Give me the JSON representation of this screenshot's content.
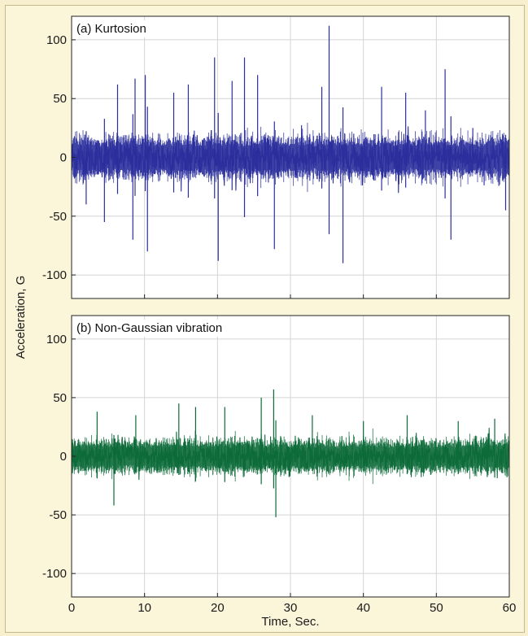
{
  "chart_data": [
    {
      "type": "line",
      "title": "(a) Kurtosion",
      "xlim": [
        0,
        60
      ],
      "ylim": [
        -120,
        120
      ],
      "xticks": [
        0,
        10,
        20,
        30,
        40,
        50,
        60
      ],
      "yticks": [
        -100,
        -50,
        0,
        50,
        100
      ],
      "grid": true,
      "color": "#2b2f9c",
      "series": [
        {
          "description_points": {
            "x": [
              2.0,
              4.5,
              6.3,
              8.4,
              8.7,
              10.1,
              10.4,
              14.0,
              16.0,
              19.6,
              20.1,
              22.0,
              23.7,
              25.5,
              27.8,
              34.3,
              35.3,
              37.2,
              42.5,
              45.8,
              48.5,
              51.2,
              52.0,
              55.0,
              59.5
            ],
            "y": [
              -40,
              -55,
              62,
              -70,
              67,
              70,
              -80,
              55,
              62,
              85,
              -88,
              65,
              85,
              70,
              -78,
              60,
              112,
              -90,
              60,
              55,
              40,
              75,
              -70,
              25,
              -45
            ]
          },
          "baseline_amplitude": 25
        }
      ]
    },
    {
      "type": "line",
      "title": "(b) Non-Gaussian vibration",
      "xlim": [
        0,
        60
      ],
      "ylim": [
        -120,
        120
      ],
      "xticks": [
        0,
        10,
        20,
        30,
        40,
        50,
        60
      ],
      "yticks": [
        -100,
        -50,
        0,
        50,
        100
      ],
      "xlabel": "Time, Sec.",
      "grid": true,
      "color": "#0d6b3a",
      "series": [
        {
          "description_points": {
            "x": [
              3.5,
              5.8,
              8.8,
              14.7,
              17.0,
              21.0,
              26.0,
              27.7,
              28.0,
              33.0,
              40.0,
              46.0,
              53.0,
              58.0
            ],
            "y": [
              38,
              -42,
              35,
              45,
              42,
              42,
              50,
              57,
              -52,
              35,
              30,
              35,
              30,
              32
            ]
          },
          "baseline_amplitude": 20
        }
      ]
    }
  ],
  "shared_ylabel": "Acceleration, G"
}
